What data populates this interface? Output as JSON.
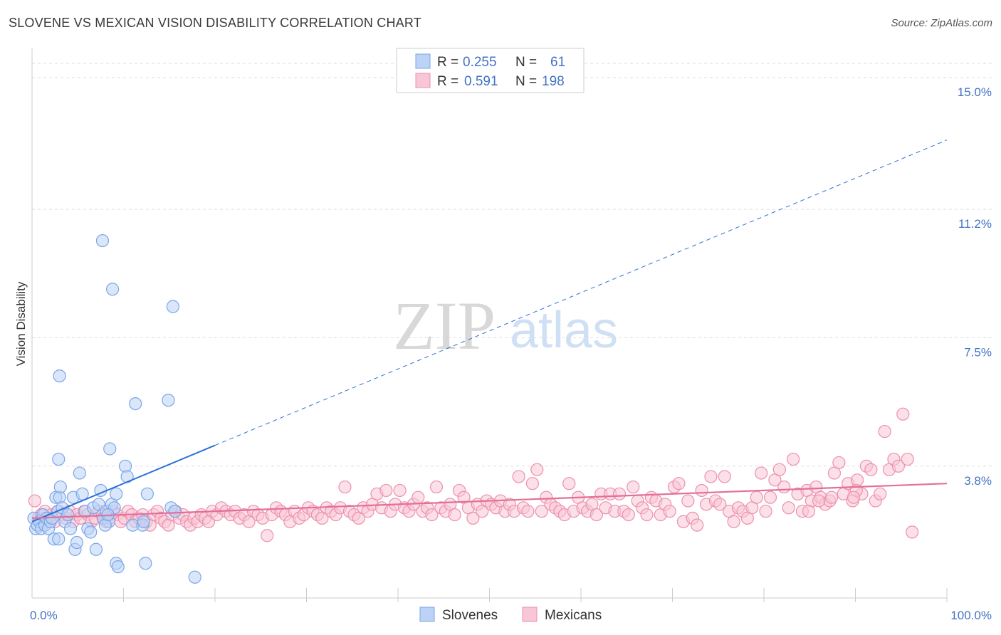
{
  "title": "SLOVENE VS MEXICAN VISION DISABILITY CORRELATION CHART",
  "source": "Source: ZipAtlas.com",
  "watermark": {
    "zip": "ZIP",
    "atlas": "atlas"
  },
  "chart_data": {
    "type": "scatter",
    "ylabel": "Vision Disability",
    "xlabel": "",
    "xlim": [
      0,
      100
    ],
    "ylim": [
      0,
      15.8
    ],
    "x_tick_labels": [
      "0.0%",
      "100.0%"
    ],
    "y_ticks": [
      3.8,
      7.5,
      11.2,
      15.0
    ],
    "y_tick_labels": [
      "3.8%",
      "7.5%",
      "11.2%",
      "15.0%"
    ],
    "legend": {
      "rows": [
        {
          "r_label": "R =",
          "r_value": "0.255",
          "n_label": "N =",
          "n_value": "61"
        },
        {
          "r_label": "R =",
          "r_value": "0.591",
          "n_label": "N =",
          "n_value": "198"
        }
      ]
    },
    "series": [
      {
        "name": "Slovenes",
        "color": "#7aa6e8",
        "fill": "#bcd3f5",
        "line_color": "#2b6fd6",
        "trend": {
          "x0": 0,
          "y0": 2.2,
          "x1": 20,
          "y1": 4.4,
          "dash_to_x": 100,
          "dash_to_y": 13.2
        },
        "points": [
          [
            0.2,
            2.3
          ],
          [
            0.4,
            2.0
          ],
          [
            0.6,
            2.1
          ],
          [
            0.8,
            2.2
          ],
          [
            1.0,
            2.0
          ],
          [
            1.2,
            2.4
          ],
          [
            1.4,
            2.1
          ],
          [
            1.6,
            2.3
          ],
          [
            1.8,
            2.0
          ],
          [
            2.0,
            2.2
          ],
          [
            2.2,
            2.3
          ],
          [
            2.4,
            1.7
          ],
          [
            2.6,
            2.9
          ],
          [
            2.8,
            2.5
          ],
          [
            3.0,
            2.9
          ],
          [
            3.3,
            2.6
          ],
          [
            3.6,
            2.2
          ],
          [
            3.9,
            2.4
          ],
          [
            4.2,
            2.0
          ],
          [
            4.5,
            2.9
          ],
          [
            4.7,
            1.4
          ],
          [
            4.9,
            1.6
          ],
          [
            5.2,
            3.6
          ],
          [
            5.5,
            3.0
          ],
          [
            5.8,
            2.5
          ],
          [
            6.1,
            2.0
          ],
          [
            6.4,
            1.9
          ],
          [
            6.7,
            2.6
          ],
          [
            7.0,
            1.4
          ],
          [
            7.3,
            2.7
          ],
          [
            7.5,
            3.1
          ],
          [
            7.8,
            2.3
          ],
          [
            8.1,
            2.5
          ],
          [
            8.4,
            2.2
          ],
          [
            8.7,
            2.7
          ],
          [
            9.0,
            2.6
          ],
          [
            3.0,
            6.4
          ],
          [
            2.9,
            1.7
          ],
          [
            2.9,
            4.0
          ],
          [
            3.1,
            3.2
          ],
          [
            7.7,
            10.3
          ],
          [
            8.8,
            8.9
          ],
          [
            9.2,
            1.0
          ],
          [
            10.2,
            3.8
          ],
          [
            10.4,
            3.5
          ],
          [
            11.0,
            2.1
          ],
          [
            11.3,
            5.6
          ],
          [
            12.1,
            2.1
          ],
          [
            12.4,
            1.0
          ],
          [
            12.6,
            3.0
          ],
          [
            14.9,
            5.7
          ],
          [
            15.2,
            2.6
          ],
          [
            15.4,
            8.4
          ],
          [
            15.6,
            2.5
          ],
          [
            17.8,
            0.6
          ],
          [
            8.0,
            2.1
          ],
          [
            8.3,
            2.4
          ],
          [
            9.4,
            0.9
          ],
          [
            12.2,
            2.2
          ],
          [
            9.2,
            3.0
          ],
          [
            8.5,
            4.3
          ]
        ]
      },
      {
        "name": "Mexicans",
        "color": "#ee8fae",
        "fill": "#f8c6d6",
        "line_color": "#e36f98",
        "trend": {
          "x0": 0,
          "y0": 2.3,
          "x1": 100,
          "y1": 3.3
        },
        "points": [
          [
            0.3,
            2.8
          ],
          [
            0.7,
            2.3
          ],
          [
            1.0,
            2.4
          ],
          [
            1.4,
            2.5
          ],
          [
            1.8,
            2.3
          ],
          [
            2.1,
            2.4
          ],
          [
            2.5,
            2.2
          ],
          [
            2.9,
            2.5
          ],
          [
            3.3,
            2.4
          ],
          [
            3.7,
            2.3
          ],
          [
            4.1,
            2.5
          ],
          [
            4.5,
            2.2
          ],
          [
            4.9,
            2.4
          ],
          [
            5.3,
            2.3
          ],
          [
            5.7,
            2.5
          ],
          [
            6.1,
            2.4
          ],
          [
            6.5,
            2.2
          ],
          [
            6.9,
            2.3
          ],
          [
            7.3,
            2.5
          ],
          [
            7.7,
            2.4
          ],
          [
            8.1,
            2.2
          ],
          [
            8.5,
            2.3
          ],
          [
            8.9,
            2.5
          ],
          [
            9.3,
            2.4
          ],
          [
            9.7,
            2.2
          ],
          [
            10.1,
            2.3
          ],
          [
            10.5,
            2.5
          ],
          [
            10.9,
            2.4
          ],
          [
            11.3,
            2.2
          ],
          [
            11.7,
            2.3
          ],
          [
            12.1,
            2.4
          ],
          [
            12.5,
            2.2
          ],
          [
            12.9,
            2.1
          ],
          [
            13.3,
            2.4
          ],
          [
            13.7,
            2.5
          ],
          [
            14.1,
            2.3
          ],
          [
            14.5,
            2.2
          ],
          [
            14.9,
            2.1
          ],
          [
            15.3,
            2.4
          ],
          [
            15.7,
            2.5
          ],
          [
            16.1,
            2.3
          ],
          [
            16.5,
            2.4
          ],
          [
            16.9,
            2.2
          ],
          [
            17.3,
            2.1
          ],
          [
            17.7,
            2.3
          ],
          [
            18.1,
            2.2
          ],
          [
            18.5,
            2.4
          ],
          [
            18.9,
            2.3
          ],
          [
            19.3,
            2.2
          ],
          [
            19.7,
            2.5
          ],
          [
            20.2,
            2.4
          ],
          [
            20.7,
            2.6
          ],
          [
            21.2,
            2.5
          ],
          [
            21.7,
            2.4
          ],
          [
            22.2,
            2.5
          ],
          [
            22.7,
            2.3
          ],
          [
            23.2,
            2.4
          ],
          [
            23.7,
            2.2
          ],
          [
            24.2,
            2.5
          ],
          [
            24.7,
            2.4
          ],
          [
            25.2,
            2.3
          ],
          [
            25.7,
            1.8
          ],
          [
            26.2,
            2.4
          ],
          [
            26.7,
            2.6
          ],
          [
            27.2,
            2.5
          ],
          [
            27.7,
            2.4
          ],
          [
            28.2,
            2.2
          ],
          [
            28.7,
            2.5
          ],
          [
            29.2,
            2.3
          ],
          [
            29.7,
            2.4
          ],
          [
            30.2,
            2.6
          ],
          [
            30.7,
            2.5
          ],
          [
            31.2,
            2.4
          ],
          [
            31.7,
            2.3
          ],
          [
            32.2,
            2.6
          ],
          [
            32.7,
            2.5
          ],
          [
            33.2,
            2.4
          ],
          [
            33.7,
            2.6
          ],
          [
            34.2,
            3.2
          ],
          [
            34.7,
            2.5
          ],
          [
            35.2,
            2.4
          ],
          [
            35.7,
            2.3
          ],
          [
            36.2,
            2.6
          ],
          [
            36.7,
            2.5
          ],
          [
            37.2,
            2.7
          ],
          [
            37.7,
            3.0
          ],
          [
            38.2,
            2.6
          ],
          [
            38.7,
            3.1
          ],
          [
            39.2,
            2.5
          ],
          [
            39.7,
            2.7
          ],
          [
            40.2,
            3.1
          ],
          [
            40.7,
            2.6
          ],
          [
            41.2,
            2.5
          ],
          [
            41.7,
            2.7
          ],
          [
            42.2,
            2.9
          ],
          [
            42.7,
            2.5
          ],
          [
            43.2,
            2.6
          ],
          [
            43.7,
            2.4
          ],
          [
            44.2,
            3.2
          ],
          [
            44.7,
            2.6
          ],
          [
            45.2,
            2.5
          ],
          [
            45.7,
            2.7
          ],
          [
            46.2,
            2.4
          ],
          [
            46.7,
            3.1
          ],
          [
            47.2,
            2.9
          ],
          [
            47.7,
            2.6
          ],
          [
            48.2,
            2.3
          ],
          [
            48.7,
            2.7
          ],
          [
            49.2,
            2.5
          ],
          [
            49.7,
            2.8
          ],
          [
            50.2,
            2.7
          ],
          [
            50.7,
            2.6
          ],
          [
            51.2,
            2.8
          ],
          [
            51.7,
            2.5
          ],
          [
            52.2,
            2.7
          ],
          [
            52.7,
            2.5
          ],
          [
            53.2,
            3.5
          ],
          [
            53.7,
            2.6
          ],
          [
            54.2,
            2.5
          ],
          [
            54.7,
            3.3
          ],
          [
            55.2,
            3.7
          ],
          [
            55.7,
            2.5
          ],
          [
            56.2,
            2.9
          ],
          [
            56.7,
            2.7
          ],
          [
            57.2,
            2.6
          ],
          [
            57.7,
            2.5
          ],
          [
            58.2,
            2.4
          ],
          [
            58.7,
            3.3
          ],
          [
            59.2,
            2.5
          ],
          [
            59.7,
            2.9
          ],
          [
            60.2,
            2.6
          ],
          [
            60.7,
            2.5
          ],
          [
            61.2,
            2.7
          ],
          [
            61.7,
            2.4
          ],
          [
            62.2,
            3.0
          ],
          [
            62.7,
            2.6
          ],
          [
            63.2,
            3.0
          ],
          [
            63.7,
            2.5
          ],
          [
            64.2,
            3.0
          ],
          [
            64.7,
            2.5
          ],
          [
            65.2,
            2.4
          ],
          [
            65.7,
            3.2
          ],
          [
            66.2,
            2.8
          ],
          [
            66.7,
            2.6
          ],
          [
            67.2,
            2.4
          ],
          [
            67.7,
            2.9
          ],
          [
            68.2,
            2.8
          ],
          [
            68.7,
            2.4
          ],
          [
            69.2,
            2.7
          ],
          [
            69.7,
            2.5
          ],
          [
            70.2,
            3.2
          ],
          [
            70.7,
            3.3
          ],
          [
            71.2,
            2.2
          ],
          [
            71.7,
            2.8
          ],
          [
            72.2,
            2.3
          ],
          [
            72.7,
            2.1
          ],
          [
            73.2,
            3.1
          ],
          [
            73.7,
            2.7
          ],
          [
            74.2,
            3.5
          ],
          [
            74.7,
            2.8
          ],
          [
            75.2,
            2.7
          ],
          [
            75.7,
            3.5
          ],
          [
            76.2,
            2.5
          ],
          [
            76.7,
            2.2
          ],
          [
            77.2,
            2.6
          ],
          [
            77.7,
            2.5
          ],
          [
            78.2,
            2.3
          ],
          [
            78.7,
            2.6
          ],
          [
            79.2,
            2.9
          ],
          [
            79.7,
            3.6
          ],
          [
            80.2,
            2.5
          ],
          [
            80.7,
            2.9
          ],
          [
            81.2,
            3.4
          ],
          [
            81.7,
            3.7
          ],
          [
            82.2,
            3.2
          ],
          [
            82.7,
            2.6
          ],
          [
            83.2,
            4.0
          ],
          [
            83.7,
            3.0
          ],
          [
            84.2,
            2.5
          ],
          [
            84.7,
            3.1
          ],
          [
            85.2,
            2.8
          ],
          [
            85.7,
            3.2
          ],
          [
            86.2,
            2.9
          ],
          [
            86.7,
            2.7
          ],
          [
            87.2,
            2.8
          ],
          [
            87.7,
            3.6
          ],
          [
            88.2,
            3.9
          ],
          [
            88.7,
            3.0
          ],
          [
            89.2,
            3.3
          ],
          [
            89.7,
            2.8
          ],
          [
            90.2,
            3.4
          ],
          [
            90.7,
            3.0
          ],
          [
            91.2,
            3.8
          ],
          [
            91.7,
            3.7
          ],
          [
            92.2,
            2.8
          ],
          [
            92.7,
            3.0
          ],
          [
            93.2,
            4.8
          ],
          [
            93.7,
            3.7
          ],
          [
            94.2,
            4.0
          ],
          [
            94.7,
            3.8
          ],
          [
            95.2,
            5.3
          ],
          [
            95.7,
            4.0
          ],
          [
            96.2,
            1.9
          ],
          [
            90.1,
            3.1
          ],
          [
            89.8,
            2.9
          ],
          [
            87.4,
            2.9
          ],
          [
            86.0,
            2.8
          ],
          [
            84.9,
            2.5
          ]
        ]
      }
    ]
  }
}
